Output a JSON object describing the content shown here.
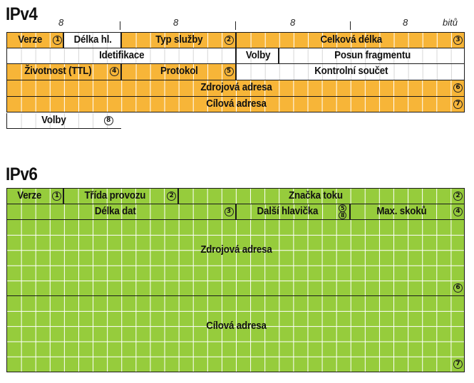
{
  "colors": {
    "ipv4_fill": "#f7b538",
    "ipv6_fill": "#96cc3c",
    "grid_line": "#ffffff",
    "border": "#1a1a1a",
    "white": "#ffffff"
  },
  "ipv4": {
    "title": "IPv4",
    "ruler": {
      "labels": [
        "8",
        "8",
        "8",
        "8"
      ],
      "unit": "bitů"
    },
    "rows": [
      [
        {
          "label": "Verze",
          "marker": "1",
          "bits": [
            0,
            4
          ],
          "fill": "ipv4_fill"
        },
        {
          "label": "Délka hl.",
          "marker": "",
          "bits": [
            4,
            8
          ],
          "fill": "white"
        },
        {
          "label": "Typ služby",
          "marker": "2",
          "bits": [
            8,
            16
          ],
          "fill": "ipv4_fill"
        },
        {
          "label": "Celková délka",
          "marker": "3",
          "bits": [
            16,
            32
          ],
          "fill": "ipv4_fill"
        }
      ],
      [
        {
          "label": "Idetifikace",
          "marker": "",
          "bits": [
            0,
            16
          ],
          "fill": "white"
        },
        {
          "label": "Volby",
          "marker": "",
          "bits": [
            16,
            19
          ],
          "fill": "white"
        },
        {
          "label": "Posun fragmentu",
          "marker": "",
          "bits": [
            19,
            32
          ],
          "fill": "white"
        }
      ],
      [
        {
          "label": "Životnost (TTL)",
          "marker": "4",
          "bits": [
            0,
            8
          ],
          "fill": "ipv4_fill"
        },
        {
          "label": "Protokol",
          "marker": "5",
          "bits": [
            8,
            16
          ],
          "fill": "ipv4_fill"
        },
        {
          "label": "Kontrolní součet",
          "marker": "",
          "bits": [
            16,
            32
          ],
          "fill": "white"
        }
      ],
      [
        {
          "label": "Zdrojová adresa",
          "marker": "6",
          "bits": [
            0,
            32
          ],
          "fill": "ipv4_fill"
        }
      ],
      [
        {
          "label": "Cílová adresa",
          "marker": "7",
          "bits": [
            0,
            32
          ],
          "fill": "ipv4_fill"
        }
      ],
      [
        {
          "label": "Volby",
          "marker": "8",
          "bits": [
            0,
            8
          ],
          "fill": "white"
        }
      ]
    ]
  },
  "ipv6": {
    "title": "IPv6",
    "rows": [
      {
        "fields": [
          {
            "label": "Verze",
            "marker": "1",
            "bits": [
              0,
              4
            ]
          },
          {
            "label": "Třída provozu",
            "marker": "2",
            "bits": [
              4,
              12
            ]
          },
          {
            "label": "Značka toku",
            "marker": "2",
            "bits": [
              12,
              32
            ]
          }
        ]
      },
      {
        "fields": [
          {
            "label": "Délka dat",
            "marker": "3",
            "bits": [
              0,
              16
            ]
          },
          {
            "label": "Další hlavička",
            "marker": "5/8",
            "bits": [
              16,
              24
            ]
          },
          {
            "label": "Max. skoků",
            "marker": "4",
            "bits": [
              24,
              32
            ]
          }
        ]
      },
      {
        "fields": [
          {
            "label": "Zdrojová adresa",
            "marker": "6",
            "bits": [
              0,
              32
            ]
          }
        ]
      },
      {
        "fields": [
          {
            "label": "Cílová adresa",
            "marker": "7",
            "bits": [
              0,
              32
            ]
          }
        ]
      }
    ]
  }
}
